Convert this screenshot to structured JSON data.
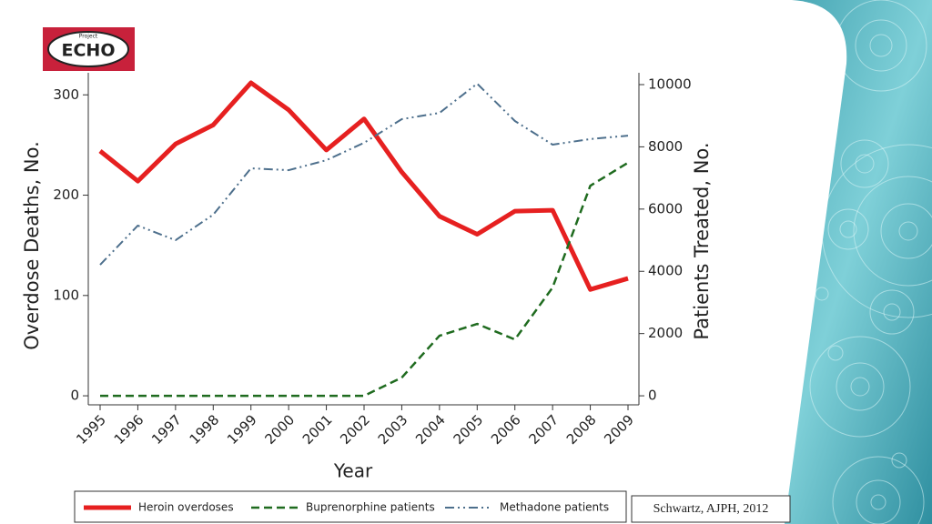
{
  "logo": {
    "top": "Project",
    "name": "ECHO"
  },
  "citation": "Schwartz, AJPH, 2012",
  "chart_data": {
    "type": "line",
    "xlabel": "Year",
    "ylabel": "Overdose Deaths, No.",
    "y2label": "Patients Treated, No.",
    "categories": [
      "1995",
      "1996",
      "1997",
      "1998",
      "1999",
      "2000",
      "2001",
      "2002",
      "2003",
      "2004",
      "2005",
      "2006",
      "2007",
      "2008",
      "2009"
    ],
    "ylim": [
      -9,
      322
    ],
    "yticks": [
      0,
      100,
      200,
      300
    ],
    "y2lim": [
      -290,
      10380
    ],
    "y2ticks": [
      0,
      2000,
      4000,
      6000,
      8000,
      10000
    ],
    "series": [
      {
        "name": "Heroin overdoses",
        "color": "#e62020",
        "style": "solid",
        "values": [
          244,
          214,
          251,
          270,
          312,
          285,
          245,
          276,
          223,
          179,
          161,
          184,
          185,
          106,
          117
        ]
      },
      {
        "name": "Buprenorphine patients",
        "color": "#1f6b1f",
        "style": "dashed",
        "axis": "y2",
        "values": [
          0,
          0,
          0,
          0,
          0,
          0,
          0,
          0,
          585,
          1930,
          2310,
          1810,
          3480,
          6750,
          7490
        ]
      },
      {
        "name": "Methadone patients",
        "color": "#4d6f8c",
        "style": "dash-dot-dot",
        "axis": "y2",
        "values": [
          4210,
          5470,
          5000,
          5820,
          7310,
          7250,
          7570,
          8130,
          8890,
          9090,
          10030,
          8830,
          8070,
          8250,
          8360
        ]
      }
    ]
  }
}
